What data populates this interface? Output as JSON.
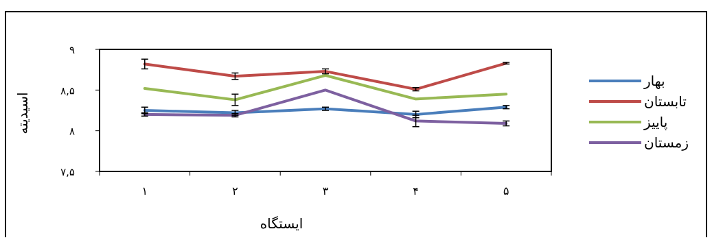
{
  "chart_data": {
    "type": "line",
    "title": "",
    "xlabel": "ایستگاه",
    "ylabel": "اسیدیته",
    "categories": [
      "۱",
      "۲",
      "۳",
      "۴",
      "۵"
    ],
    "ylim": [
      7.5,
      9
    ],
    "yticks": [
      7.5,
      8,
      8.5,
      9
    ],
    "ytick_labels": [
      "۷,۵",
      "۸",
      "۸,۵",
      "۹"
    ],
    "grid": false,
    "legend_position": "right",
    "error_bars": true,
    "series": [
      {
        "name": "بهار",
        "color": "#4a7ebb",
        "values": [
          8.25,
          8.22,
          8.27,
          8.2,
          8.29
        ],
        "errors": [
          0.04,
          0.03,
          0.02,
          0.04,
          0.02
        ]
      },
      {
        "name": "تابستان",
        "color": "#be4b48",
        "values": [
          8.82,
          8.67,
          8.73,
          8.51,
          8.83
        ],
        "errors": [
          0.06,
          0.04,
          0.03,
          0.02,
          0.01
        ]
      },
      {
        "name": "پاییز",
        "color": "#98b954",
        "values": [
          8.52,
          8.38,
          8.68,
          8.39,
          8.45
        ],
        "errors": [
          0.0,
          0.07,
          0.0,
          0.0,
          0.0
        ]
      },
      {
        "name": "زمستان",
        "color": "#7d60a0",
        "values": [
          8.2,
          8.19,
          8.5,
          8.12,
          8.09
        ],
        "errors": [
          0.02,
          0.02,
          0.0,
          0.07,
          0.03
        ]
      }
    ]
  }
}
